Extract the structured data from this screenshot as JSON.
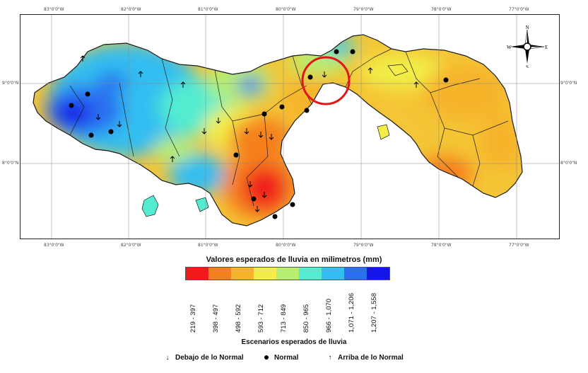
{
  "map": {
    "lon_ticks": [
      "83°0'0\"W",
      "82°0'0\"W",
      "81°0'0\"W",
      "80°0'0\"W",
      "79°0'0\"W",
      "78°0'0\"W",
      "77°0'0\"W"
    ],
    "lat_ticks": [
      "9°0'0\"N",
      "8°0'0\"N"
    ],
    "compass": {
      "n": "N",
      "s": "S",
      "e": "E",
      "w": "W"
    },
    "highlight_circle_color": "#e0161b"
  },
  "legend": {
    "title": "Valores esperados de lluvia en milimetros (mm)",
    "classes": [
      {
        "range": "219 - 397",
        "color": "#f01a1a"
      },
      {
        "range": "398 - 497",
        "color": "#f5801e"
      },
      {
        "range": "498 - 592",
        "color": "#f6b42a"
      },
      {
        "range": "593 - 712",
        "color": "#f2ee47"
      },
      {
        "range": "713 - 849",
        "color": "#b6ee70"
      },
      {
        "range": "850 - 965",
        "color": "#53ecd0"
      },
      {
        "range": "966 - 1,070",
        "color": "#33bdf0"
      },
      {
        "range": "1,071 - 1,206",
        "color": "#2b6ef0"
      },
      {
        "range": "1,207 - 1,558",
        "color": "#1515e8"
      }
    ]
  },
  "scenarios": {
    "title": "Escenarios esperados de lluvia",
    "items": [
      {
        "label": "Debajo de lo Normal",
        "icon": "arrow-down-icon"
      },
      {
        "label": "Normal",
        "icon": "dot-icon"
      },
      {
        "label": "Arriba de lo Normal",
        "icon": "arrow-up-icon"
      }
    ]
  }
}
